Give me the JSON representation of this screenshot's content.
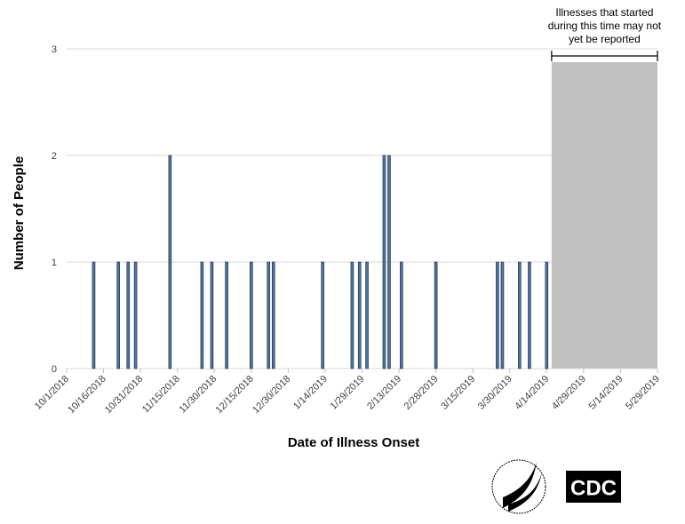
{
  "chart_data": {
    "type": "bar",
    "x_label": "Date of Illness Onset",
    "y_label": "Number of People",
    "x": [
      "10/12/2018",
      "10/22/2018",
      "10/26/2018",
      "10/29/2018",
      "11/12/2018",
      "11/25/2018",
      "11/29/2018",
      "12/5/2018",
      "12/15/2018",
      "12/22/2018",
      "12/24/2018",
      "1/13/2019",
      "1/25/2019",
      "1/28/2019",
      "1/31/2019",
      "2/7/2019",
      "2/9/2019",
      "2/14/2019",
      "2/28/2019",
      "3/25/2019",
      "3/27/2019",
      "4/3/2019",
      "4/7/2019",
      "4/14/2019"
    ],
    "values": [
      1,
      1,
      1,
      1,
      2,
      1,
      1,
      1,
      1,
      1,
      1,
      1,
      1,
      1,
      1,
      2,
      2,
      1,
      1,
      1,
      1,
      1,
      1,
      1
    ],
    "color": "#4f729c",
    "xlim": [
      "10/1/2018",
      "5/29/2019"
    ],
    "xticks": [
      "10/1/2018",
      "10/16/2018",
      "10/31/2018",
      "11/15/2018",
      "11/30/2018",
      "12/15/2018",
      "12/30/2018",
      "1/14/2019",
      "1/29/2019",
      "2/13/2019",
      "2/28/2019",
      "3/15/2019",
      "3/30/2019",
      "4/14/2019",
      "4/29/2019",
      "5/14/2019",
      "5/29/2019"
    ],
    "ylim": [
      0,
      3
    ],
    "yticks": [
      0,
      1,
      2,
      3
    ],
    "grid": true,
    "shaded_region": {
      "start": "4/16/2019",
      "end": "5/29/2019",
      "color": "#c0c0c0",
      "annotation": [
        "Illnesses that started",
        "during this time may not",
        "yet be reported"
      ]
    }
  },
  "logos": {
    "cdc": "CDC"
  }
}
